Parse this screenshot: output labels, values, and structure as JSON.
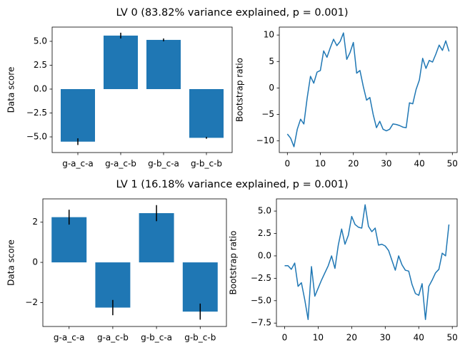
{
  "chart_data": [
    {
      "type": "bar",
      "title": "LV 0 (83.82% variance explained, p = 0.001)",
      "ylabel": "Data score",
      "categories": [
        "g-a_c-a",
        "g-a_c-b",
        "g-b_c-a",
        "g-b_c-b"
      ],
      "values": [
        -5.5,
        5.6,
        5.15,
        -5.1
      ],
      "errors": [
        0.35,
        0.3,
        0.15,
        0.1
      ],
      "color": "#1f77b4",
      "ylim": [
        -6.64,
        6.49
      ],
      "yticks": [
        {
          "value": 5,
          "label": "5.0"
        },
        {
          "value": 2.5,
          "label": "2.5"
        },
        {
          "value": 0,
          "label": "0.0"
        },
        {
          "value": -2.5,
          "label": "−2.5"
        },
        {
          "value": -5,
          "label": "−5.0"
        }
      ]
    },
    {
      "type": "line",
      "ylabel": "Bootstrap ratio",
      "x": [
        0,
        1,
        2,
        3,
        4,
        5,
        6,
        7,
        8,
        9,
        10,
        11,
        12,
        13,
        14,
        15,
        16,
        17,
        18,
        19,
        20,
        21,
        22,
        23,
        24,
        25,
        26,
        27,
        28,
        29,
        30,
        31,
        32,
        33,
        34,
        35,
        36,
        37,
        38,
        39,
        40,
        41,
        42,
        43,
        44,
        45,
        46,
        47,
        48,
        49
      ],
      "values": [
        -8.7,
        -9.5,
        -11.1,
        -7.8,
        -5.9,
        -6.8,
        -1.9,
        2.2,
        0.9,
        3.0,
        3.3,
        7.0,
        5.8,
        7.6,
        9.2,
        8.0,
        8.8,
        10.4,
        5.4,
        6.7,
        8.6,
        2.8,
        3.3,
        0.3,
        -2.3,
        -1.8,
        -5.0,
        -7.5,
        -6.3,
        -7.8,
        -8.1,
        -7.8,
        -6.8,
        -6.9,
        -7.1,
        -7.4,
        -7.5,
        -2.8,
        -3.0,
        -0.3,
        1.5,
        5.6,
        3.7,
        5.2,
        4.9,
        6.4,
        8.1,
        7.1,
        8.9,
        6.9
      ],
      "color": "#1f77b4",
      "xlim": [
        -2.45,
        51.45
      ],
      "xticks": [
        0,
        10,
        20,
        30,
        40,
        50
      ],
      "ylim": [
        -12.2,
        11.5
      ],
      "yticks": [
        10,
        5,
        0,
        {
          "value": -5,
          "label": "−5"
        },
        {
          "value": -10,
          "label": "−10"
        }
      ]
    },
    {
      "type": "bar",
      "title": "LV 1 (16.18% variance explained, p = 0.001)",
      "ylabel": "Data score",
      "categories": [
        "g-a_c-a",
        "g-a_c-b",
        "g-b_c-a",
        "g-b_c-b"
      ],
      "values": [
        2.25,
        -2.25,
        2.45,
        -2.45
      ],
      "errors": [
        0.37,
        0.38,
        0.4,
        0.4
      ],
      "color": "#1f77b4",
      "ylim": [
        -3.19,
        3.16
      ],
      "yticks": [
        2,
        0,
        {
          "value": -2,
          "label": "−2"
        }
      ]
    },
    {
      "type": "line",
      "ylabel": "Bootstrap ratio",
      "x": [
        0,
        1,
        2,
        3,
        4,
        5,
        6,
        7,
        8,
        9,
        10,
        11,
        12,
        13,
        14,
        15,
        16,
        17,
        18,
        19,
        20,
        21,
        22,
        23,
        24,
        25,
        26,
        27,
        28,
        29,
        30,
        31,
        32,
        33,
        34,
        35,
        36,
        37,
        38,
        39,
        40,
        41,
        42,
        43,
        44,
        45,
        46,
        47,
        48,
        49
      ],
      "values": [
        -1.1,
        -1.1,
        -1.5,
        -0.8,
        -3.4,
        -3.0,
        -4.9,
        -7.1,
        -1.2,
        -4.5,
        -3.6,
        -2.7,
        -1.9,
        -1.1,
        0.0,
        -1.4,
        1.2,
        3.0,
        1.3,
        2.3,
        4.4,
        3.5,
        3.2,
        3.1,
        5.7,
        3.3,
        2.7,
        3.1,
        1.2,
        1.3,
        1.1,
        0.6,
        -0.5,
        -1.6,
        0.0,
        -1.0,
        -1.6,
        -1.7,
        -3.2,
        -4.2,
        -4.4,
        -3.1,
        -7.1,
        -3.4,
        -2.7,
        -1.9,
        -1.5,
        0.3,
        0.0,
        3.5
      ],
      "color": "#1f77b4",
      "xlim": [
        -2.45,
        51.45
      ],
      "xticks": [
        0,
        10,
        20,
        30,
        40,
        50
      ],
      "ylim": [
        -7.88,
        6.36
      ],
      "yticks": [
        {
          "value": 5,
          "label": "5.0"
        },
        {
          "value": 2.5,
          "label": "2.5"
        },
        {
          "value": 0,
          "label": "0.0"
        },
        {
          "value": -2.5,
          "label": "−2.5"
        },
        {
          "value": -5,
          "label": "−5.0"
        },
        {
          "value": -7.5,
          "label": "−7.5"
        }
      ]
    }
  ]
}
